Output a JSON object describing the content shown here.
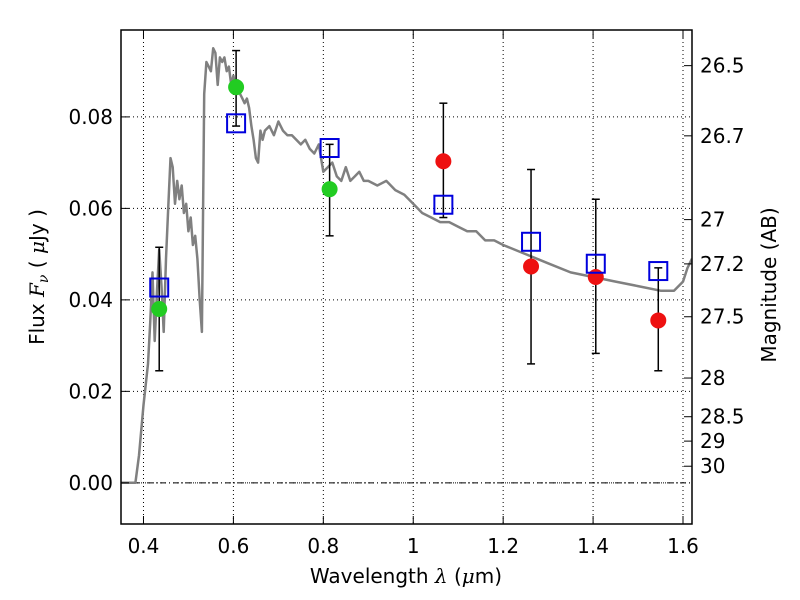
{
  "chart_data": {
    "type": "scatter",
    "xlabel": {
      "prefix": "Wavelength  ",
      "symbol": "λ",
      "mid": " (",
      "unit_mu": "μ",
      "unit_rest": "m)"
    },
    "ylabel": {
      "prefix": "Flux  ",
      "symbol": "F",
      "sub": "ν",
      "mid": "  ( ",
      "unit_mu": "μ",
      "unit_rest": "Jy )"
    },
    "y2label": "Magnitude (AB)",
    "xlim": [
      0.35,
      1.62
    ],
    "ylim": [
      -0.009,
      0.099
    ],
    "grid": true,
    "x_ticks": [
      {
        "v": 0.4,
        "label": "0.4"
      },
      {
        "v": 0.6,
        "label": "0.6"
      },
      {
        "v": 0.8,
        "label": "0.8"
      },
      {
        "v": 1.0,
        "label": "1"
      },
      {
        "v": 1.2,
        "label": "1.2"
      },
      {
        "v": 1.4,
        "label": "1.4"
      },
      {
        "v": 1.6,
        "label": "1.6"
      }
    ],
    "y_ticks": [
      {
        "v": 0.0,
        "label": "0.00"
      },
      {
        "v": 0.02,
        "label": "0.02"
      },
      {
        "v": 0.04,
        "label": "0.04"
      },
      {
        "v": 0.06,
        "label": "0.06"
      },
      {
        "v": 0.08,
        "label": "0.08"
      }
    ],
    "mag_ticks": [
      {
        "mag": 26.5,
        "label": "26.5"
      },
      {
        "mag": 26.7,
        "label": "26.7"
      },
      {
        "mag": 27.0,
        "label": "27"
      },
      {
        "mag": 27.2,
        "label": "27.2"
      },
      {
        "mag": 27.5,
        "label": "27.5"
      },
      {
        "mag": 28.0,
        "label": "28"
      },
      {
        "mag": 28.5,
        "label": "28.5"
      },
      {
        "mag": 29.0,
        "label": "29"
      },
      {
        "mag": 30.0,
        "label": "30"
      }
    ],
    "zero_line": 0.0,
    "template": {
      "color": "#808080",
      "x": [
        0.35,
        0.382,
        0.39,
        0.4,
        0.41,
        0.415,
        0.42,
        0.425,
        0.43,
        0.435,
        0.44,
        0.445,
        0.45,
        0.455,
        0.46,
        0.465,
        0.47,
        0.475,
        0.48,
        0.485,
        0.49,
        0.495,
        0.5,
        0.505,
        0.51,
        0.515,
        0.52,
        0.525,
        0.53,
        0.535,
        0.54,
        0.545,
        0.55,
        0.555,
        0.56,
        0.565,
        0.57,
        0.575,
        0.58,
        0.585,
        0.59,
        0.595,
        0.6,
        0.605,
        0.61,
        0.615,
        0.62,
        0.625,
        0.63,
        0.635,
        0.64,
        0.645,
        0.65,
        0.655,
        0.66,
        0.665,
        0.67,
        0.68,
        0.69,
        0.7,
        0.71,
        0.72,
        0.73,
        0.74,
        0.75,
        0.76,
        0.77,
        0.78,
        0.79,
        0.8,
        0.81,
        0.82,
        0.83,
        0.84,
        0.85,
        0.86,
        0.87,
        0.88,
        0.89,
        0.9,
        0.92,
        0.94,
        0.96,
        0.98,
        1.0,
        1.02,
        1.04,
        1.06,
        1.08,
        1.1,
        1.12,
        1.14,
        1.16,
        1.18,
        1.2,
        1.25,
        1.3,
        1.35,
        1.4,
        1.45,
        1.5,
        1.55,
        1.58,
        1.6,
        1.61,
        1.62
      ],
      "y": [
        0.0,
        0.0,
        0.006,
        0.017,
        0.026,
        0.035,
        0.046,
        0.031,
        0.042,
        0.051,
        0.043,
        0.033,
        0.049,
        0.06,
        0.071,
        0.069,
        0.061,
        0.066,
        0.062,
        0.065,
        0.059,
        0.061,
        0.055,
        0.058,
        0.052,
        0.054,
        0.049,
        0.04,
        0.033,
        0.085,
        0.092,
        0.091,
        0.09,
        0.095,
        0.094,
        0.087,
        0.093,
        0.092,
        0.093,
        0.09,
        0.091,
        0.087,
        0.089,
        0.086,
        0.088,
        0.085,
        0.084,
        0.083,
        0.084,
        0.082,
        0.078,
        0.075,
        0.071,
        0.07,
        0.077,
        0.075,
        0.077,
        0.078,
        0.076,
        0.079,
        0.077,
        0.076,
        0.076,
        0.075,
        0.074,
        0.075,
        0.073,
        0.072,
        0.074,
        0.068,
        0.069,
        0.07,
        0.067,
        0.066,
        0.069,
        0.066,
        0.067,
        0.068,
        0.066,
        0.066,
        0.065,
        0.066,
        0.064,
        0.063,
        0.061,
        0.059,
        0.058,
        0.057,
        0.057,
        0.056,
        0.055,
        0.055,
        0.053,
        0.053,
        0.052,
        0.05,
        0.048,
        0.046,
        0.045,
        0.044,
        0.043,
        0.042,
        0.042,
        0.044,
        0.047,
        0.049
      ]
    },
    "series": [
      {
        "marker": "circle",
        "color": "#22cc22",
        "points": [
          {
            "x": 0.435,
            "y": 0.038,
            "ylo": 0.0245,
            "yhi": 0.0515
          },
          {
            "x": 0.606,
            "y": 0.0865,
            "ylo": 0.078,
            "yhi": 0.0945
          },
          {
            "x": 0.814,
            "y": 0.0642,
            "ylo": 0.054,
            "yhi": 0.074
          }
        ]
      },
      {
        "marker": "circle",
        "color": "#ee1111",
        "points": [
          {
            "x": 1.067,
            "y": 0.0703,
            "ylo": 0.058,
            "yhi": 0.083
          },
          {
            "x": 1.262,
            "y": 0.0473,
            "ylo": 0.026,
            "yhi": 0.0685
          },
          {
            "x": 1.406,
            "y": 0.045,
            "ylo": 0.0283,
            "yhi": 0.062
          },
          {
            "x": 1.545,
            "y": 0.0355,
            "ylo": 0.0245,
            "yhi": 0.047
          }
        ]
      },
      {
        "marker": "square",
        "color": "#0000dd",
        "points": [
          {
            "x": 0.435,
            "y": 0.0427
          },
          {
            "x": 0.606,
            "y": 0.0786
          },
          {
            "x": 0.814,
            "y": 0.0732
          },
          {
            "x": 1.067,
            "y": 0.0608
          },
          {
            "x": 1.262,
            "y": 0.0527
          },
          {
            "x": 1.406,
            "y": 0.0479
          },
          {
            "x": 1.545,
            "y": 0.0463
          }
        ]
      }
    ]
  }
}
